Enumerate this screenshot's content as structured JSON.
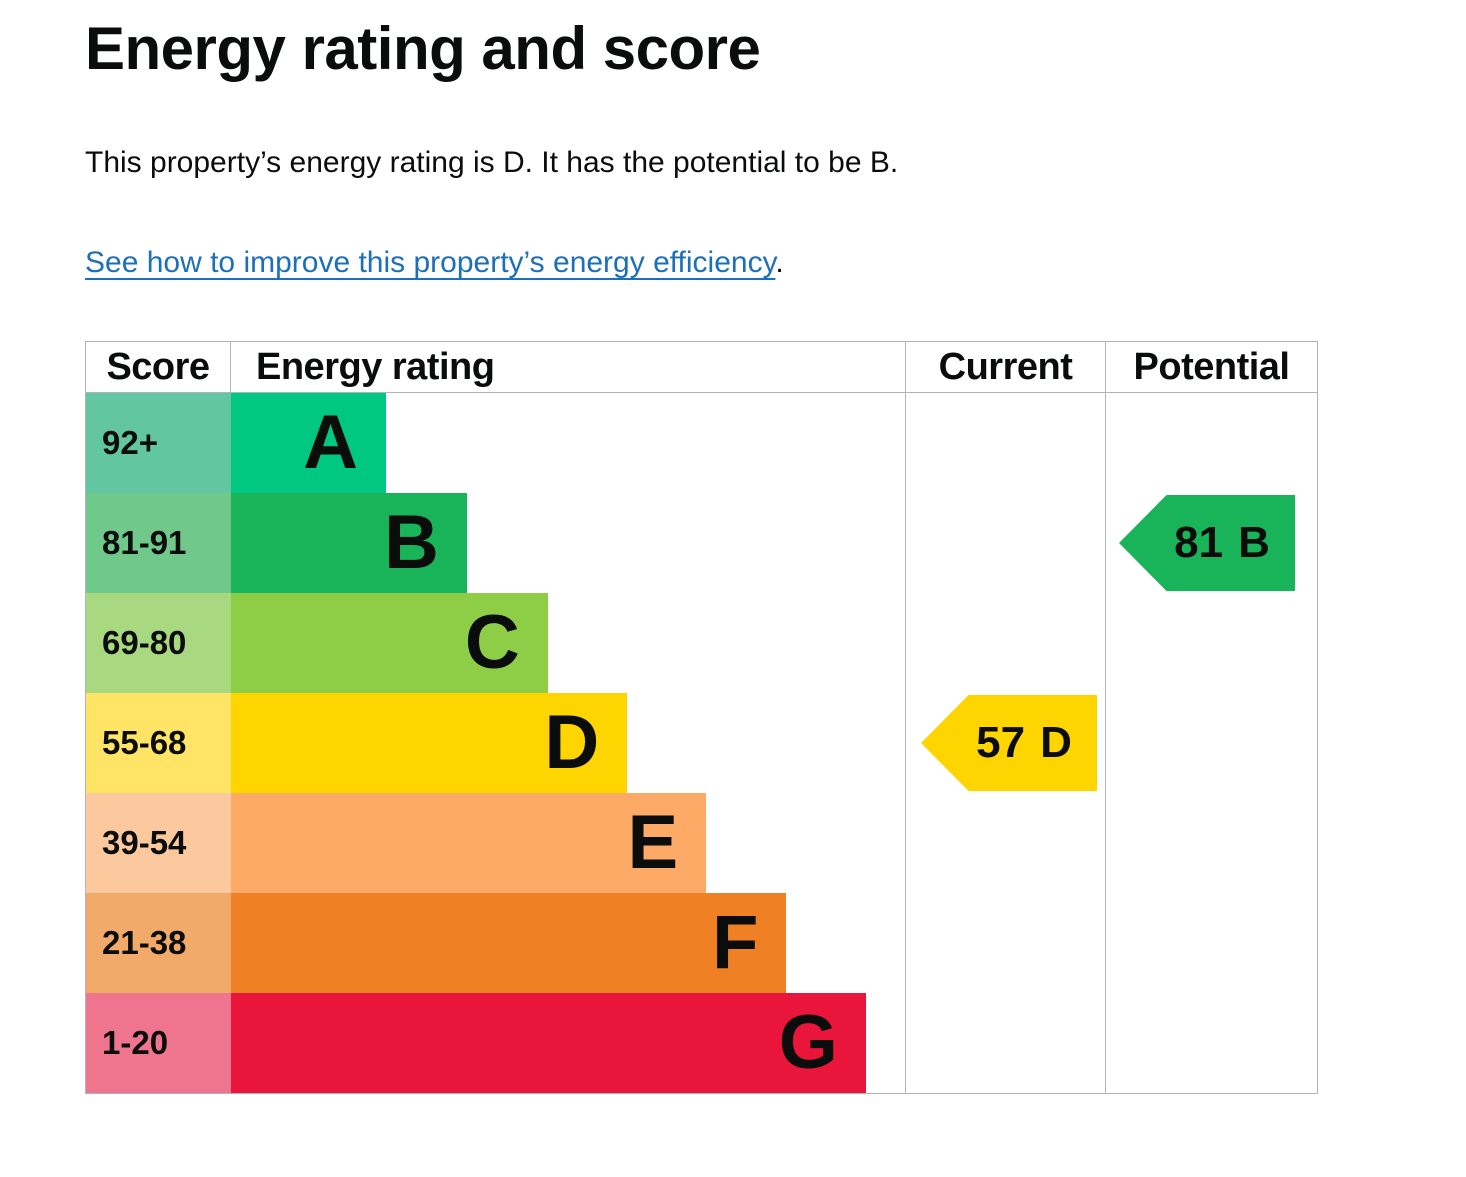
{
  "page": {
    "title": "Energy rating and score",
    "summary": "This property’s energy rating is D. It has the potential to be B.",
    "improve_link": "See how to improve this property’s energy efficiency",
    "improve_link_suffix": "."
  },
  "colors": {
    "text": "#0b0c0c",
    "link_blue": "#1d70b8",
    "table_border": "#b1b4b6"
  },
  "table": {
    "headers": [
      "Score",
      "Energy rating",
      "Current",
      "Potential"
    ],
    "bands": [
      {
        "score_label": "92+",
        "letter": "A",
        "color": "#00c781",
        "score_color": "#62c6a2",
        "width_pct": 23.0
      },
      {
        "score_label": "81-91",
        "letter": "B",
        "color": "#19b459",
        "score_color": "#71c88b",
        "width_pct": 35.0
      },
      {
        "score_label": "69-80",
        "letter": "C",
        "color": "#8dce46",
        "score_color": "#a8d87f",
        "width_pct": 47.0
      },
      {
        "score_label": "55-68",
        "letter": "D",
        "color": "#ffd500",
        "score_color": "#ffe466",
        "width_pct": 58.8
      },
      {
        "score_label": "39-54",
        "letter": "E",
        "color": "#fcaa65",
        "score_color": "#fcc89d",
        "width_pct": 70.5
      },
      {
        "score_label": "21-38",
        "letter": "F",
        "color": "#ef8023",
        "score_color": "#f2aa6a",
        "width_pct": 82.4
      },
      {
        "score_label": "1-20",
        "letter": "G",
        "color": "#e9153b",
        "score_color": "#ee758d",
        "width_pct": 94.2
      }
    ],
    "current": {
      "label": "57",
      "letter": "D",
      "color": "#ffd500"
    },
    "potential": {
      "label": "81",
      "letter": "B",
      "color": "#19b459"
    }
  },
  "chart_data": {
    "type": "bar",
    "orientation": "horizontal",
    "title": "Energy rating and score",
    "columns": [
      "Score",
      "Energy rating",
      "Current",
      "Potential"
    ],
    "categories": [
      "A",
      "B",
      "C",
      "D",
      "E",
      "F",
      "G"
    ],
    "score_ranges": [
      "92+",
      "81-91",
      "69-80",
      "55-68",
      "39-54",
      "21-38",
      "1-20"
    ],
    "bar_relative_lengths_pct": [
      23.0,
      35.0,
      47.0,
      58.8,
      70.5,
      82.4,
      94.2
    ],
    "band_colors": [
      "#00c781",
      "#19b459",
      "#8dce46",
      "#ffd500",
      "#fcaa65",
      "#ef8023",
      "#e9153b"
    ],
    "markers": [
      {
        "label": "Current",
        "score": 57,
        "band": "D",
        "color": "#ffd500"
      },
      {
        "label": "Potential",
        "score": 81,
        "band": "B",
        "color": "#19b459"
      }
    ]
  }
}
